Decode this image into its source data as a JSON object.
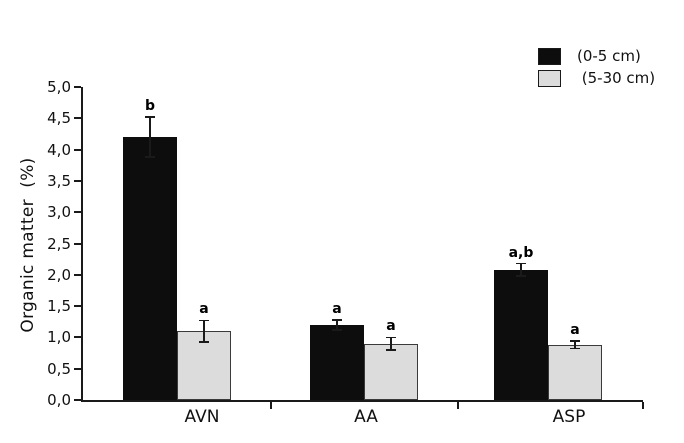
{
  "figure": {
    "background": "#ffffff",
    "axis_color": "#1a1a1a"
  },
  "chart_data": {
    "type": "bar",
    "title": "",
    "xlabel": "",
    "ylabel": "Organic matter  (%)",
    "ylim": [
      0,
      5
    ],
    "ytick_step": 0.5,
    "ytick_labels": [
      "0,0",
      "0,5",
      "1,0",
      "1,5",
      "2,0",
      "2,5",
      "3,0",
      "3,5",
      "4,0",
      "4,5",
      "5,0"
    ],
    "decimal_separator": ",",
    "grid": false,
    "categories": [
      "AVN",
      "AA",
      "ASP"
    ],
    "series": [
      {
        "name": "(0-5 cm)",
        "fill_color": "#0d0d0d",
        "border_color": "#0d0d0d",
        "values": [
          4.2,
          1.2,
          2.08
        ],
        "errors": [
          0.32,
          0.08,
          0.1
        ],
        "sig_letters": [
          "b",
          "a",
          "a,b"
        ]
      },
      {
        "name": " (5-30 cm)",
        "fill_color": "#dcdcdc",
        "border_color": "#3a3a3a",
        "values": [
          1.1,
          0.9,
          0.88
        ],
        "errors": [
          0.17,
          0.1,
          0.06
        ],
        "sig_letters": [
          "a",
          "a",
          "a"
        ]
      }
    ],
    "legend_position": "top-right",
    "error_bars": true
  }
}
